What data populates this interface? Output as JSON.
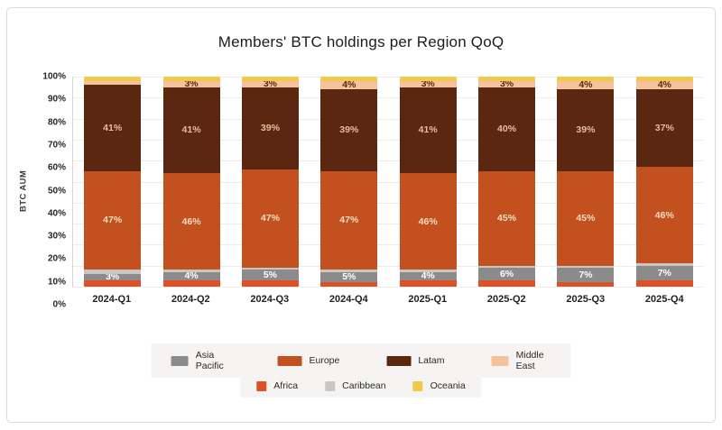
{
  "chart_data": {
    "type": "bar",
    "variant": "stacked-percent",
    "title": "Members' BTC holdings per Region QoQ",
    "xlabel": "",
    "ylabel": "BTC AUM",
    "ylim": [
      0,
      100
    ],
    "grid": true,
    "legend_position": "bottom",
    "categories": [
      "2024-Q1",
      "2024-Q2",
      "2024-Q3",
      "2024-Q4",
      "2025-Q1",
      "2025-Q2",
      "2025-Q3",
      "2025-Q4"
    ],
    "y_ticks": [
      "100%",
      "90%",
      "80%",
      "70%",
      "60%",
      "50%",
      "40%",
      "30%",
      "20%",
      "10%",
      "0%"
    ],
    "label_min_value": 3,
    "series": [
      {
        "key": "africa",
        "name": "Africa",
        "color": "#DC5226",
        "label_color": "#FFFFFF",
        "show_labels": false,
        "values": [
          3,
          3,
          3,
          2,
          3,
          3,
          2,
          3
        ]
      },
      {
        "key": "asia_pacific",
        "name": "Asia Pacific",
        "color": "#8B8B8B",
        "label_color": "#FFFFFF",
        "show_labels": true,
        "values": [
          3,
          4,
          5,
          5,
          4,
          6,
          7,
          7
        ]
      },
      {
        "key": "caribbean",
        "name": "Caribbean",
        "color": "#C9C7C4",
        "label_color": "#444444",
        "show_labels": false,
        "values": [
          2,
          1,
          1,
          1,
          1,
          1,
          1,
          1
        ]
      },
      {
        "key": "europe",
        "name": "Europe",
        "color": "#C2511F",
        "label_color": "#F6DCC0",
        "show_labels": true,
        "values": [
          47,
          46,
          47,
          47,
          46,
          45,
          45,
          46
        ]
      },
      {
        "key": "latam",
        "name": "Latam",
        "color": "#5B2711",
        "label_color": "#E5BD9E",
        "show_labels": true,
        "values": [
          41,
          41,
          39,
          39,
          41,
          40,
          39,
          37
        ]
      },
      {
        "key": "middle_east",
        "name": "Middle East",
        "color": "#F4C29B",
        "label_color": "#5B2711",
        "show_labels": true,
        "values": [
          2,
          3,
          3,
          4,
          3,
          3,
          4,
          4
        ]
      },
      {
        "key": "oceania",
        "name": "Oceania",
        "color": "#F2C94C",
        "label_color": "#5B2711",
        "show_labels": false,
        "values": [
          2,
          2,
          2,
          2,
          2,
          2,
          2,
          2
        ]
      }
    ],
    "legend": {
      "rows": [
        [
          "asia_pacific",
          "europe",
          "latam",
          "middle_east"
        ],
        [
          "africa",
          "caribbean",
          "oceania"
        ]
      ]
    }
  }
}
